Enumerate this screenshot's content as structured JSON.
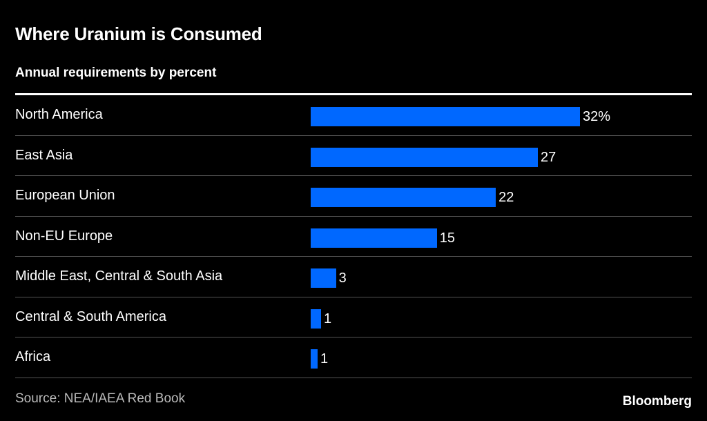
{
  "header": {
    "title": "Where Uranium is Consumed",
    "subtitle": "Annual requirements by percent"
  },
  "footer": {
    "source": "Source: NEA/IAEA Red Book",
    "brand": "Bloomberg"
  },
  "colors": {
    "bar": "#0068ff",
    "background": "#000000"
  },
  "chart_data": {
    "type": "bar",
    "orientation": "horizontal",
    "title": "Where Uranium is Consumed",
    "subtitle": "Annual requirements by percent",
    "xlabel": "",
    "ylabel": "",
    "unit": "%",
    "xlim": [
      0,
      32
    ],
    "grid": false,
    "categories": [
      "North America",
      "East Asia",
      "European Union",
      "Non-EU Europe",
      "Middle East, Central & South Asia",
      "Central & South America",
      "Africa"
    ],
    "values": [
      32,
      27,
      22,
      15,
      3,
      1,
      1
    ],
    "value_labels": [
      "32%",
      "27",
      "22",
      "15",
      "3",
      "1",
      "1"
    ],
    "source": "Source: NEA/IAEA Red Book"
  }
}
